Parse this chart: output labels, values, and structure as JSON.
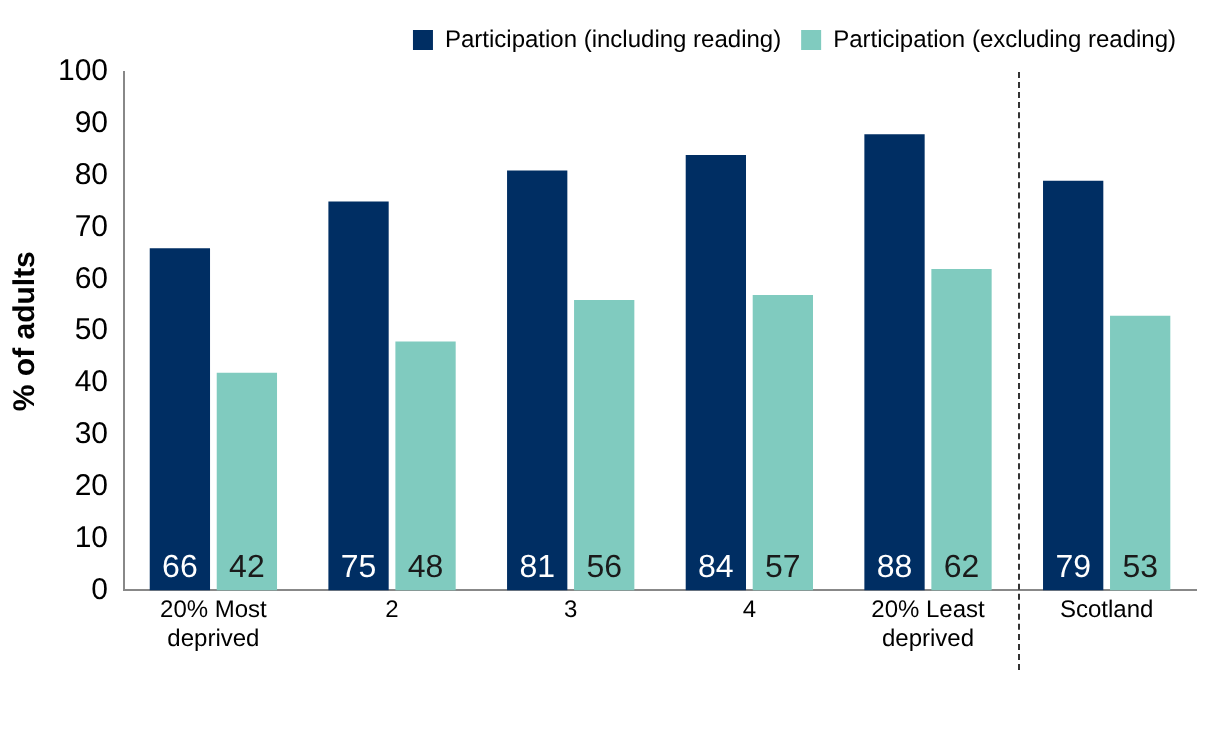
{
  "chart_data": {
    "type": "bar",
    "ylabel": "% of adults",
    "categories": [
      "20% Most deprived",
      "2",
      "3",
      "4",
      "20% Least deprived",
      "Scotland"
    ],
    "series": [
      {
        "name": "Participation (including reading)",
        "color": "#002e63",
        "values": [
          66,
          75,
          81,
          84,
          88,
          79
        ]
      },
      {
        "name": "Participation (excluding reading)",
        "color": "#80cbbf",
        "values": [
          42,
          48,
          56,
          57,
          62,
          53
        ]
      }
    ],
    "ylim": [
      0,
      100
    ],
    "yticks": [
      0,
      10,
      20,
      30,
      40,
      50,
      60,
      70,
      80,
      90,
      100
    ],
    "grid": false,
    "legend": "top",
    "data_labels": true
  }
}
